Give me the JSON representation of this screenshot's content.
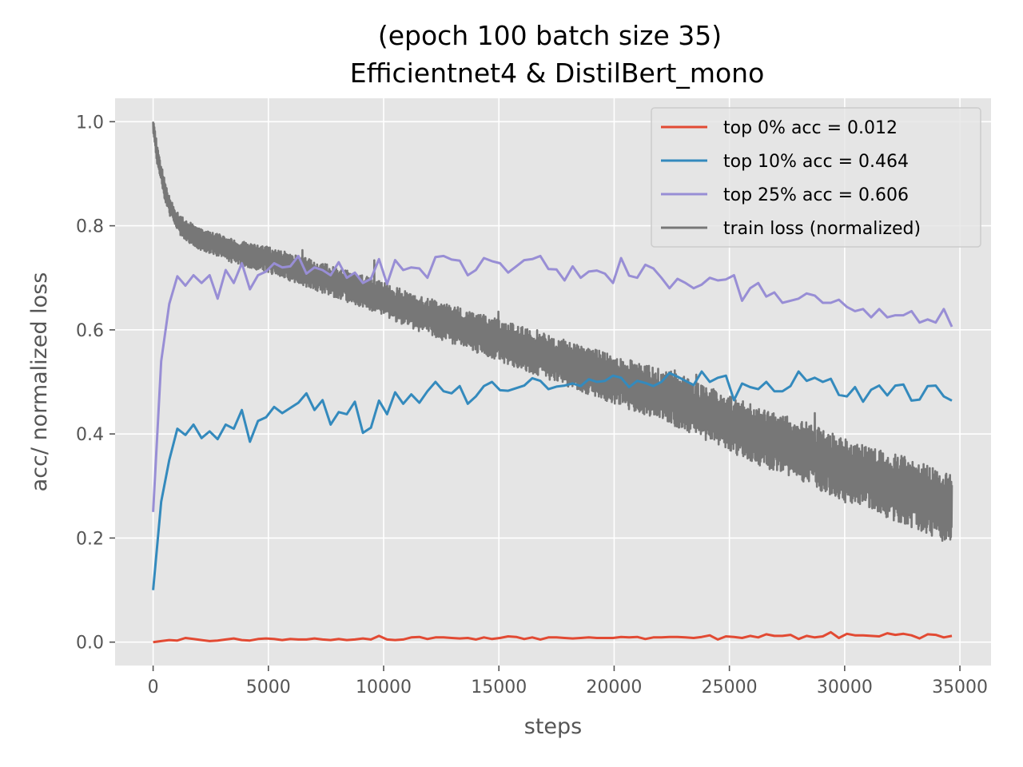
{
  "chart_data": {
    "type": "line",
    "title_line1": "(epoch 100 batch size 35)",
    "title_line2": "Efficientnet4 & DistilBert_mono",
    "xlabel": "steps",
    "ylabel": "acc/ normalized loss",
    "xlim": [
      -1650,
      36350
    ],
    "ylim": [
      -0.045,
      1.045
    ],
    "xticks": [
      0,
      5000,
      10000,
      15000,
      20000,
      25000,
      30000,
      35000
    ],
    "yticks": [
      0.0,
      0.2,
      0.4,
      0.6,
      0.8,
      1.0
    ],
    "xtick_labels": [
      "0",
      "5000",
      "10000",
      "15000",
      "20000",
      "25000",
      "30000",
      "35000"
    ],
    "ytick_labels": [
      "0.0",
      "0.2",
      "0.4",
      "0.6",
      "0.8",
      "1.0"
    ],
    "grid": true,
    "legend_position": "top-right",
    "colors": {
      "background": "#e5e5e5",
      "grid": "#ffffff",
      "legend_bg": "#e5e5e5",
      "legend_border": "#cccccc"
    },
    "series": [
      {
        "name": "top 0% acc = 0.012",
        "color": "#e24a33",
        "x": [
          0,
          350,
          700,
          1050,
          1400,
          1750,
          2100,
          2450,
          2800,
          3150,
          3500,
          3850,
          4200,
          4550,
          4900,
          5250,
          5600,
          5950,
          6300,
          6650,
          7000,
          7350,
          7700,
          8050,
          8400,
          8750,
          9100,
          9450,
          9800,
          10150,
          10500,
          10850,
          11200,
          11550,
          11900,
          12250,
          12600,
          12950,
          13300,
          13650,
          14000,
          14350,
          14700,
          15050,
          15400,
          15750,
          16100,
          16450,
          16800,
          17150,
          17500,
          17850,
          18200,
          18550,
          18900,
          19250,
          19600,
          19950,
          20300,
          20650,
          21000,
          21350,
          21700,
          22050,
          22400,
          22750,
          23100,
          23450,
          23800,
          24150,
          24500,
          24850,
          25200,
          25550,
          25900,
          26250,
          26600,
          26950,
          27300,
          27650,
          28000,
          28350,
          28700,
          29050,
          29400,
          29750,
          30100,
          30450,
          30800,
          31150,
          31500,
          31850,
          32200,
          32550,
          32900,
          33250,
          33600,
          33950,
          34300,
          34650
        ],
        "y": [
          0.0,
          0.002,
          0.004,
          0.003,
          0.008,
          0.006,
          0.004,
          0.002,
          0.003,
          0.005,
          0.007,
          0.004,
          0.003,
          0.006,
          0.007,
          0.006,
          0.004,
          0.006,
          0.005,
          0.005,
          0.007,
          0.005,
          0.004,
          0.006,
          0.004,
          0.005,
          0.007,
          0.005,
          0.012,
          0.005,
          0.004,
          0.005,
          0.009,
          0.01,
          0.006,
          0.009,
          0.009,
          0.008,
          0.007,
          0.008,
          0.005,
          0.009,
          0.006,
          0.008,
          0.011,
          0.01,
          0.006,
          0.009,
          0.005,
          0.009,
          0.009,
          0.008,
          0.007,
          0.008,
          0.009,
          0.008,
          0.008,
          0.008,
          0.01,
          0.009,
          0.01,
          0.006,
          0.009,
          0.009,
          0.01,
          0.01,
          0.009,
          0.008,
          0.01,
          0.013,
          0.005,
          0.011,
          0.01,
          0.008,
          0.012,
          0.009,
          0.015,
          0.012,
          0.012,
          0.014,
          0.006,
          0.012,
          0.009,
          0.011,
          0.019,
          0.008,
          0.016,
          0.013,
          0.013,
          0.012,
          0.011,
          0.017,
          0.014,
          0.016,
          0.013,
          0.007,
          0.015,
          0.014,
          0.009,
          0.012
        ]
      },
      {
        "name": "top 10% acc = 0.464",
        "color": "#348abd",
        "x": [
          0,
          350,
          700,
          1050,
          1400,
          1750,
          2100,
          2450,
          2800,
          3150,
          3500,
          3850,
          4200,
          4550,
          4900,
          5250,
          5600,
          5950,
          6300,
          6650,
          7000,
          7350,
          7700,
          8050,
          8400,
          8750,
          9100,
          9450,
          9800,
          10150,
          10500,
          10850,
          11200,
          11550,
          11900,
          12250,
          12600,
          12950,
          13300,
          13650,
          14000,
          14350,
          14700,
          15050,
          15400,
          15750,
          16100,
          16450,
          16800,
          17150,
          17500,
          17850,
          18200,
          18550,
          18900,
          19250,
          19600,
          19950,
          20300,
          20650,
          21000,
          21350,
          21700,
          22050,
          22400,
          22750,
          23100,
          23450,
          23800,
          24150,
          24500,
          24850,
          25200,
          25550,
          25900,
          26250,
          26600,
          26950,
          27300,
          27650,
          28000,
          28350,
          28700,
          29050,
          29400,
          29750,
          30100,
          30450,
          30800,
          31150,
          31500,
          31850,
          32200,
          32550,
          32900,
          33250,
          33600,
          33950,
          34300,
          34650
        ],
        "y": [
          0.1,
          0.27,
          0.35,
          0.41,
          0.398,
          0.418,
          0.392,
          0.405,
          0.39,
          0.418,
          0.41,
          0.446,
          0.385,
          0.425,
          0.432,
          0.452,
          0.44,
          0.45,
          0.46,
          0.478,
          0.446,
          0.465,
          0.418,
          0.442,
          0.438,
          0.462,
          0.402,
          0.412,
          0.464,
          0.438,
          0.48,
          0.458,
          0.476,
          0.46,
          0.482,
          0.5,
          0.482,
          0.478,
          0.492,
          0.458,
          0.472,
          0.492,
          0.5,
          0.484,
          0.483,
          0.488,
          0.493,
          0.507,
          0.502,
          0.486,
          0.491,
          0.493,
          0.497,
          0.492,
          0.505,
          0.5,
          0.502,
          0.512,
          0.508,
          0.49,
          0.502,
          0.498,
          0.492,
          0.5,
          0.517,
          0.51,
          0.502,
          0.494,
          0.52,
          0.5,
          0.508,
          0.512,
          0.465,
          0.497,
          0.49,
          0.486,
          0.5,
          0.482,
          0.482,
          0.492,
          0.52,
          0.502,
          0.508,
          0.5,
          0.506,
          0.475,
          0.472,
          0.49,
          0.462,
          0.485,
          0.493,
          0.474,
          0.493,
          0.495,
          0.464,
          0.466,
          0.492,
          0.493,
          0.472,
          0.464
        ]
      },
      {
        "name": "top 25% acc = 0.606",
        "color": "#988ed5",
        "x": [
          0,
          350,
          700,
          1050,
          1400,
          1750,
          2100,
          2450,
          2800,
          3150,
          3500,
          3850,
          4200,
          4550,
          4900,
          5250,
          5600,
          5950,
          6300,
          6650,
          7000,
          7350,
          7700,
          8050,
          8400,
          8750,
          9100,
          9450,
          9800,
          10150,
          10500,
          10850,
          11200,
          11550,
          11900,
          12250,
          12600,
          12950,
          13300,
          13650,
          14000,
          14350,
          14700,
          15050,
          15400,
          15750,
          16100,
          16450,
          16800,
          17150,
          17500,
          17850,
          18200,
          18550,
          18900,
          19250,
          19600,
          19950,
          20300,
          20650,
          21000,
          21350,
          21700,
          22050,
          22400,
          22750,
          23100,
          23450,
          23800,
          24150,
          24500,
          24850,
          25200,
          25550,
          25900,
          26250,
          26600,
          26950,
          27300,
          27650,
          28000,
          28350,
          28700,
          29050,
          29400,
          29750,
          30100,
          30450,
          30800,
          31150,
          31500,
          31850,
          32200,
          32550,
          32900,
          33250,
          33600,
          33950,
          34300,
          34650
        ],
        "y": [
          0.25,
          0.54,
          0.65,
          0.703,
          0.685,
          0.705,
          0.69,
          0.705,
          0.66,
          0.715,
          0.69,
          0.728,
          0.678,
          0.705,
          0.712,
          0.728,
          0.72,
          0.722,
          0.742,
          0.708,
          0.72,
          0.715,
          0.705,
          0.73,
          0.7,
          0.71,
          0.69,
          0.698,
          0.736,
          0.688,
          0.734,
          0.715,
          0.72,
          0.718,
          0.7,
          0.74,
          0.742,
          0.735,
          0.733,
          0.705,
          0.715,
          0.738,
          0.732,
          0.728,
          0.71,
          0.722,
          0.734,
          0.736,
          0.742,
          0.717,
          0.716,
          0.695,
          0.722,
          0.7,
          0.712,
          0.714,
          0.708,
          0.69,
          0.738,
          0.704,
          0.7,
          0.725,
          0.718,
          0.7,
          0.68,
          0.698,
          0.69,
          0.68,
          0.687,
          0.7,
          0.695,
          0.697,
          0.705,
          0.656,
          0.68,
          0.69,
          0.664,
          0.672,
          0.652,
          0.656,
          0.66,
          0.67,
          0.666,
          0.652,
          0.652,
          0.658,
          0.644,
          0.636,
          0.64,
          0.624,
          0.64,
          0.624,
          0.628,
          0.628,
          0.636,
          0.614,
          0.62,
          0.614,
          0.64,
          0.606
        ]
      },
      {
        "name": "train loss (normalized)",
        "color": "#777777",
        "x": [
          0,
          100,
          200,
          350,
          500,
          700,
          900,
          1200,
          1500,
          1800,
          2200,
          2600,
          3000,
          3500,
          4000,
          4500,
          5000,
          6000,
          7000,
          8000,
          9000,
          10000,
          11000,
          12000,
          13000,
          14000,
          15000,
          16000,
          17000,
          18000,
          19000,
          20000,
          21000,
          22000,
          23000,
          24000,
          25000,
          26000,
          27000,
          28000,
          29000,
          30000,
          31000,
          32000,
          33000,
          34000,
          34650
        ],
        "y": [
          1.0,
          0.96,
          0.93,
          0.9,
          0.87,
          0.84,
          0.82,
          0.8,
          0.79,
          0.78,
          0.77,
          0.765,
          0.76,
          0.75,
          0.745,
          0.74,
          0.735,
          0.72,
          0.705,
          0.69,
          0.675,
          0.66,
          0.64,
          0.625,
          0.61,
          0.595,
          0.58,
          0.565,
          0.55,
          0.535,
          0.52,
          0.505,
          0.49,
          0.475,
          0.46,
          0.44,
          0.42,
          0.4,
          0.385,
          0.37,
          0.35,
          0.33,
          0.315,
          0.3,
          0.285,
          0.265,
          0.255
        ]
      }
    ]
  }
}
